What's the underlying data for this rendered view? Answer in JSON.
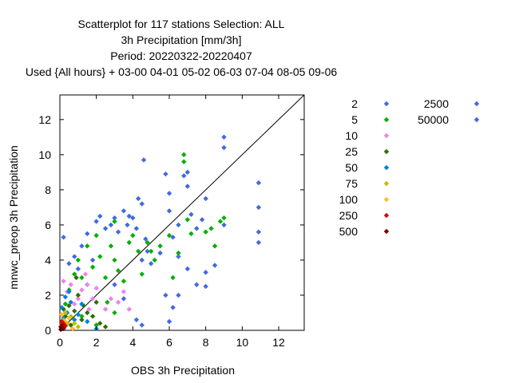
{
  "chart_data": {
    "type": "scatter",
    "title_lines": [
      "Scatterplot for  117 stations Selection: ALL",
      "3h Precipitation [mm/3h]",
      "Period: 20220322-20220407",
      "Used {All hours} + 03-00 04-01 05-02 06-03 07-04 08-05 09-06"
    ],
    "xlabel": "OBS 3h Precipitation",
    "ylabel": "mnwc_preop 3h Precipitation",
    "xlim": [
      0,
      13.4
    ],
    "ylim": [
      0,
      13.4
    ],
    "xticks": [
      "0",
      "2",
      "4",
      "6",
      "8",
      "10",
      "12"
    ],
    "yticks": [
      "0",
      "2",
      "4",
      "6",
      "8",
      "10",
      "12"
    ],
    "diagonal_line": true,
    "grid": false,
    "legend_placement": "right",
    "series": [
      {
        "name": "2",
        "color": "#4169e1",
        "points": [
          [
            0.2,
            5.3
          ],
          [
            0.5,
            3.8
          ],
          [
            0.8,
            4.2
          ],
          [
            1.0,
            3.5
          ],
          [
            1.2,
            4.8
          ],
          [
            1.5,
            5.5
          ],
          [
            1.8,
            4.0
          ],
          [
            2.0,
            6.2
          ],
          [
            2.2,
            6.5
          ],
          [
            2.5,
            5.8
          ],
          [
            2.8,
            6.0
          ],
          [
            3.0,
            6.4
          ],
          [
            3.2,
            5.6
          ],
          [
            3.5,
            6.8
          ],
          [
            3.7,
            6.0
          ],
          [
            3.8,
            6.5
          ],
          [
            4.0,
            6.4
          ],
          [
            4.2,
            5.8
          ],
          [
            4.3,
            7.5
          ],
          [
            4.5,
            7.2
          ],
          [
            4.8,
            4.5
          ],
          [
            5.0,
            3.8
          ],
          [
            4.2,
            0.6
          ],
          [
            4.5,
            0.3
          ],
          [
            3.5,
            1.8
          ],
          [
            3.0,
            2.6
          ],
          [
            5.5,
            4.4
          ],
          [
            6.0,
            6.8
          ],
          [
            5.8,
            8.9
          ],
          [
            6.0,
            7.8
          ],
          [
            6.2,
            5.3
          ],
          [
            6.5,
            6.0
          ],
          [
            6.5,
            4.2
          ],
          [
            6.8,
            8.8
          ],
          [
            7.0,
            9.0
          ],
          [
            7.0,
            8.2
          ],
          [
            7.2,
            6.6
          ],
          [
            7.5,
            5.8
          ],
          [
            7.8,
            6.3
          ],
          [
            8.0,
            7.5
          ],
          [
            8.0,
            3.3
          ],
          [
            8.5,
            3.7
          ],
          [
            9.0,
            6.0
          ],
          [
            9.0,
            11.0
          ],
          [
            9.0,
            10.4
          ],
          [
            10.9,
            8.4
          ],
          [
            10.9,
            7.0
          ],
          [
            10.9,
            5.6
          ],
          [
            10.9,
            5.0
          ],
          [
            4.6,
            9.7
          ],
          [
            4.5,
            4.0
          ],
          [
            4.7,
            5.2
          ],
          [
            5.8,
            2.0
          ],
          [
            6.2,
            1.3
          ],
          [
            6.5,
            2.0
          ],
          [
            7.0,
            3.5
          ],
          [
            7.5,
            2.6
          ],
          [
            8.0,
            2.5
          ],
          [
            6.0,
            0.5
          ]
        ]
      },
      {
        "name": "5",
        "color": "#00b000",
        "points": [
          [
            0.3,
            1.5
          ],
          [
            0.5,
            2.3
          ],
          [
            0.8,
            3.2
          ],
          [
            1.0,
            4.0
          ],
          [
            1.2,
            3.0
          ],
          [
            1.5,
            2.6
          ],
          [
            1.5,
            4.8
          ],
          [
            1.8,
            3.6
          ],
          [
            2.0,
            5.4
          ],
          [
            2.2,
            4.2
          ],
          [
            2.5,
            3.0
          ],
          [
            2.8,
            4.8
          ],
          [
            3.0,
            4.0
          ],
          [
            3.0,
            6.2
          ],
          [
            3.2,
            3.4
          ],
          [
            3.5,
            2.8
          ],
          [
            3.8,
            5.0
          ],
          [
            4.0,
            5.4
          ],
          [
            4.3,
            4.5
          ],
          [
            4.5,
            3.2
          ],
          [
            4.8,
            5.0
          ],
          [
            5.0,
            4.5
          ],
          [
            5.2,
            4.0
          ],
          [
            5.5,
            4.8
          ],
          [
            6.0,
            5.4
          ],
          [
            6.2,
            3.0
          ],
          [
            6.5,
            4.4
          ],
          [
            6.8,
            10.0
          ],
          [
            6.8,
            9.6
          ],
          [
            7.0,
            6.3
          ],
          [
            7.2,
            5.5
          ],
          [
            8.0,
            5.6
          ],
          [
            8.3,
            5.8
          ],
          [
            8.5,
            4.8
          ],
          [
            8.8,
            6.2
          ],
          [
            9.0,
            6.4
          ],
          [
            3.0,
            1.0
          ],
          [
            2.6,
            1.6
          ],
          [
            1.2,
            0.8
          ],
          [
            2.0,
            0.3
          ]
        ]
      },
      {
        "name": "10",
        "color": "#ee82ee",
        "points": [
          [
            0.2,
            2.8
          ],
          [
            0.4,
            2.2
          ],
          [
            0.6,
            2.6
          ],
          [
            0.8,
            1.5
          ],
          [
            1.0,
            1.8
          ],
          [
            1.2,
            2.3
          ],
          [
            1.5,
            2.6
          ],
          [
            1.8,
            1.8
          ],
          [
            2.0,
            2.4
          ],
          [
            2.5,
            1.2
          ],
          [
            2.8,
            1.8
          ],
          [
            3.2,
            1.6
          ],
          [
            3.5,
            2.2
          ],
          [
            3.8,
            1.2
          ],
          [
            1.4,
            3.2
          ],
          [
            1.6,
            1.2
          ]
        ]
      },
      {
        "name": "25",
        "color": "#2f6f00",
        "points": [
          [
            0.1,
            0.5
          ],
          [
            0.2,
            1.2
          ],
          [
            0.3,
            0.8
          ],
          [
            0.5,
            1.4
          ],
          [
            0.6,
            0.3
          ],
          [
            0.8,
            1.1
          ],
          [
            1.0,
            2.0
          ],
          [
            1.2,
            0.6
          ],
          [
            1.5,
            1.0
          ],
          [
            1.8,
            0.8
          ],
          [
            2.0,
            1.6
          ],
          [
            2.2,
            0.4
          ],
          [
            2.5,
            0.2
          ],
          [
            0.9,
            3.0
          ],
          [
            1.3,
            1.4
          ]
        ]
      },
      {
        "name": "50",
        "color": "#0080e0",
        "points": [
          [
            0.1,
            1.3
          ],
          [
            0.2,
            0.7
          ],
          [
            0.3,
            1.9
          ],
          [
            0.4,
            1.0
          ],
          [
            0.6,
            1.6
          ],
          [
            0.8,
            0.6
          ],
          [
            1.0,
            0.9
          ],
          [
            1.2,
            1.5
          ],
          [
            1.5,
            0.5
          ],
          [
            2.0,
            0.1
          ],
          [
            0.5,
            2.2
          ]
        ]
      },
      {
        "name": "75",
        "color": "#c0c000",
        "points": [
          [
            0.1,
            0.3
          ],
          [
            0.2,
            0.6
          ],
          [
            0.4,
            0.4
          ],
          [
            0.3,
            1.0
          ],
          [
            0.6,
            0.8
          ],
          [
            0.8,
            0.4
          ],
          [
            1.0,
            0.2
          ]
        ]
      },
      {
        "name": "100",
        "color": "#ffc020",
        "points": [
          [
            0.1,
            0.9
          ],
          [
            0.2,
            0.2
          ],
          [
            0.3,
            0.5
          ],
          [
            0.5,
            0.7
          ],
          [
            0.7,
            0.1
          ]
        ]
      },
      {
        "name": "250",
        "color": "#e00000",
        "points": [
          [
            0.05,
            0.2
          ],
          [
            0.1,
            0.5
          ],
          [
            0.15,
            0.1
          ],
          [
            0.2,
            0.4
          ],
          [
            0.3,
            0.25
          ]
        ]
      },
      {
        "name": "500",
        "color": "#800000",
        "points": [
          [
            0.05,
            0.05
          ],
          [
            0.1,
            0.15
          ],
          [
            0.2,
            0.1
          ],
          [
            0.12,
            0.3
          ]
        ]
      },
      {
        "name": "2500",
        "color": "#4169e1",
        "points": []
      },
      {
        "name": "50000",
        "color": "#4169e1",
        "points": []
      }
    ]
  }
}
